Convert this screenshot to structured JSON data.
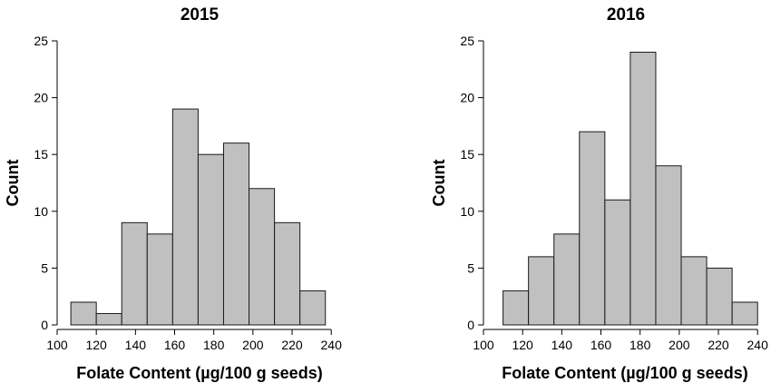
{
  "chart_data": [
    {
      "type": "bar",
      "title": "2015",
      "xlabel": "Folate Content (µg/100 g seeds)",
      "ylabel": "Count",
      "xlim": [
        100,
        245
      ],
      "ylim": [
        0,
        25
      ],
      "xticks": [
        100,
        120,
        140,
        160,
        180,
        200,
        220,
        240
      ],
      "yticks": [
        0,
        5,
        10,
        15,
        20,
        25
      ],
      "bin_edges": [
        107,
        120,
        133,
        146,
        159,
        172,
        185,
        198,
        211,
        224,
        237
      ],
      "values": [
        2,
        1,
        9,
        8,
        19,
        15,
        16,
        12,
        9,
        3
      ],
      "bar_color": "#c0c0c0",
      "grid": false
    },
    {
      "type": "bar",
      "title": "2016",
      "xlabel": "Folate Content (µg/100 g seeds)",
      "ylabel": "Count",
      "xlim": [
        100,
        245
      ],
      "ylim": [
        0,
        25
      ],
      "xticks": [
        100,
        120,
        140,
        160,
        180,
        200,
        220,
        240
      ],
      "yticks": [
        0,
        5,
        10,
        15,
        20,
        25
      ],
      "bin_edges": [
        110,
        123,
        136,
        149,
        162,
        175,
        188,
        201,
        214,
        227,
        240
      ],
      "values": [
        3,
        6,
        8,
        17,
        11,
        24,
        14,
        6,
        5,
        2
      ],
      "bar_color": "#c0c0c0",
      "grid": false
    }
  ]
}
